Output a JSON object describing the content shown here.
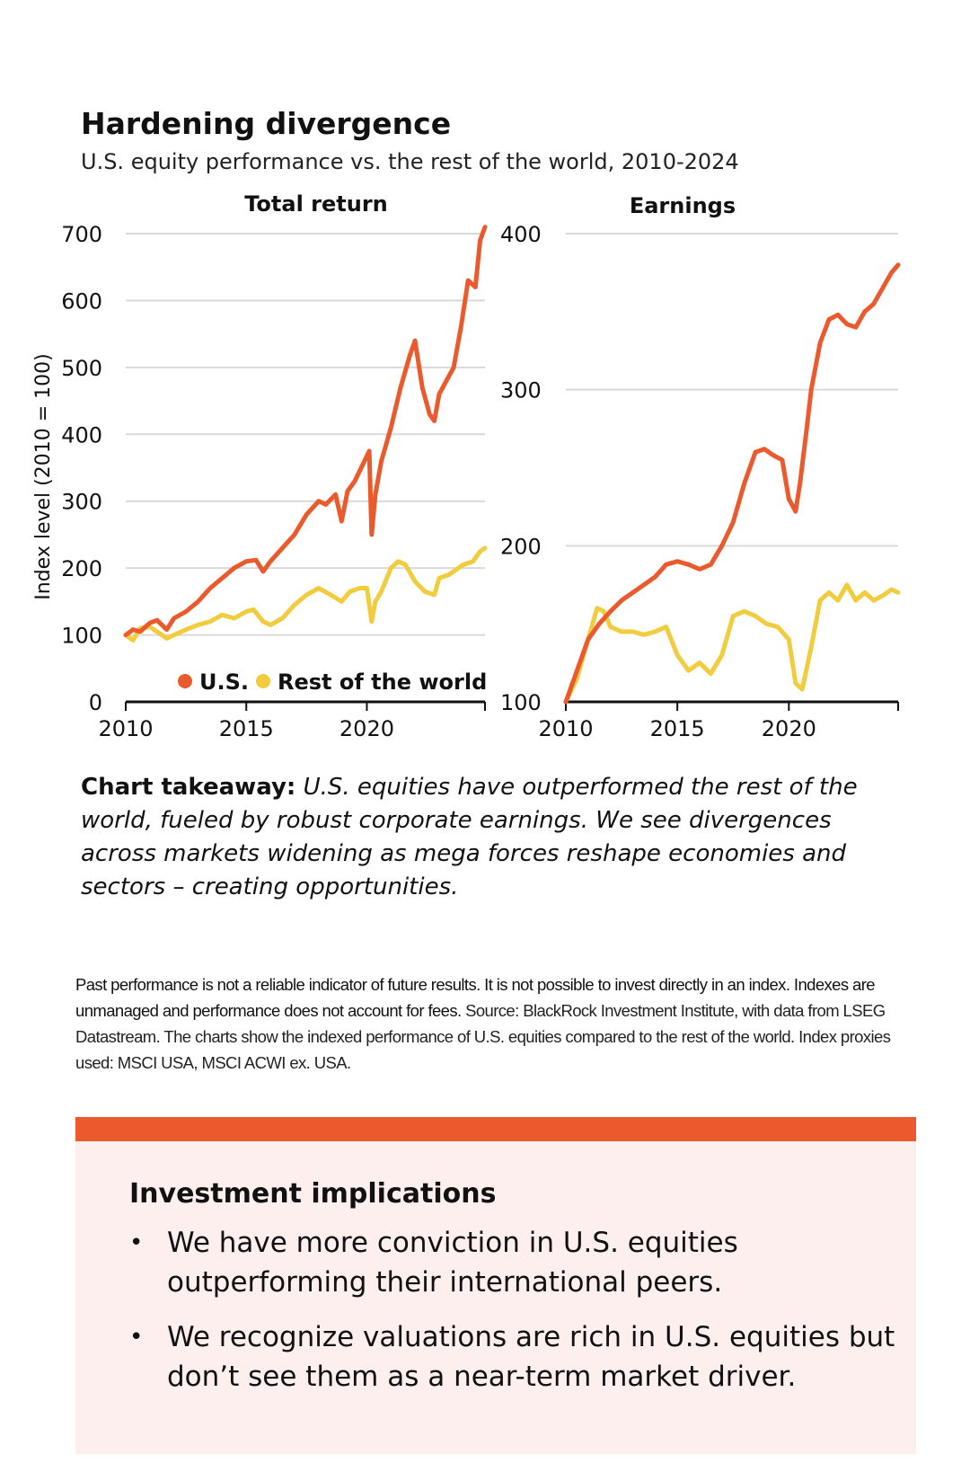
{
  "header": {
    "title": "Hardening divergence",
    "subtitle": "U.S. equity performance vs. the rest of the world, 2010-2024"
  },
  "colors": {
    "us": "#ea5a2d",
    "row": "#f2cc3f",
    "grid": "#d9d9d9",
    "panel_bg": "#fcefed"
  },
  "chart_data": [
    {
      "type": "line",
      "title": "Total return",
      "ylabel": "Index level (2010 = 100)",
      "ylim": [
        0,
        700
      ],
      "yticks": [
        0,
        100,
        200,
        300,
        400,
        500,
        600,
        700
      ],
      "xlim": [
        2010,
        2024.9
      ],
      "xticks": [
        2010,
        2015,
        2020
      ],
      "legend": {
        "placement": "bottom-inside",
        "entries": [
          "U.S.",
          "Rest of the world"
        ]
      },
      "series": [
        {
          "name": "U.S.",
          "x": [
            2010,
            2010.3,
            2010.6,
            2011,
            2011.3,
            2011.7,
            2012,
            2012.5,
            2013,
            2013.5,
            2014,
            2014.5,
            2015,
            2015.4,
            2015.7,
            2016,
            2016.5,
            2017,
            2017.5,
            2018,
            2018.3,
            2018.7,
            2018.95,
            2019.2,
            2019.5,
            2019.9,
            2020.1,
            2020.2,
            2020.35,
            2020.6,
            2021,
            2021.4,
            2021.8,
            2022,
            2022.3,
            2022.6,
            2022.8,
            2023,
            2023.3,
            2023.6,
            2023.9,
            2024.2,
            2024.5,
            2024.7,
            2024.9
          ],
          "y": [
            100,
            108,
            105,
            118,
            122,
            108,
            125,
            135,
            150,
            170,
            185,
            200,
            210,
            212,
            195,
            210,
            230,
            250,
            280,
            300,
            295,
            310,
            270,
            315,
            330,
            360,
            375,
            250,
            310,
            360,
            410,
            470,
            520,
            540,
            470,
            430,
            420,
            460,
            480,
            500,
            560,
            630,
            620,
            690,
            710
          ]
        },
        {
          "name": "Rest of the world",
          "x": [
            2010,
            2010.3,
            2010.6,
            2011,
            2011.3,
            2011.7,
            2012,
            2012.5,
            2013,
            2013.5,
            2014,
            2014.5,
            2015,
            2015.3,
            2015.7,
            2016,
            2016.5,
            2017,
            2017.5,
            2018,
            2018.5,
            2018.95,
            2019.3,
            2019.7,
            2020,
            2020.2,
            2020.35,
            2020.6,
            2021,
            2021.3,
            2021.6,
            2022,
            2022.4,
            2022.8,
            2023,
            2023.4,
            2023.8,
            2024,
            2024.4,
            2024.7,
            2024.9
          ],
          "y": [
            100,
            92,
            110,
            112,
            105,
            95,
            100,
            108,
            115,
            120,
            130,
            125,
            135,
            138,
            120,
            115,
            125,
            145,
            160,
            170,
            160,
            150,
            165,
            170,
            170,
            120,
            150,
            165,
            200,
            210,
            205,
            180,
            165,
            160,
            185,
            190,
            200,
            205,
            210,
            225,
            230
          ]
        }
      ]
    },
    {
      "type": "line",
      "title": "Earnings",
      "ylim": [
        100,
        400
      ],
      "yticks": [
        100,
        200,
        300,
        400
      ],
      "xlim": [
        2010,
        2024.9
      ],
      "xticks": [
        2010,
        2015,
        2020
      ],
      "series": [
        {
          "name": "U.S.",
          "x": [
            2010,
            2010.5,
            2011,
            2011.5,
            2012,
            2012.5,
            2013,
            2013.5,
            2014,
            2014.5,
            2015,
            2015.5,
            2016,
            2016.5,
            2017,
            2017.5,
            2018,
            2018.5,
            2018.9,
            2019.3,
            2019.7,
            2020,
            2020.3,
            2020.5,
            2020.8,
            2021,
            2021.4,
            2021.8,
            2022.2,
            2022.6,
            2023,
            2023.4,
            2023.8,
            2024.2,
            2024.6,
            2024.9
          ],
          "y": [
            100,
            120,
            140,
            150,
            158,
            165,
            170,
            175,
            180,
            188,
            190,
            188,
            185,
            188,
            200,
            215,
            240,
            260,
            262,
            258,
            255,
            230,
            222,
            240,
            275,
            300,
            330,
            345,
            348,
            342,
            340,
            350,
            355,
            365,
            375,
            380
          ]
        },
        {
          "name": "Rest of the world",
          "x": [
            2010,
            2010.5,
            2011,
            2011.4,
            2011.7,
            2012,
            2012.5,
            2013,
            2013.5,
            2014,
            2014.5,
            2015,
            2015.5,
            2016,
            2016.5,
            2017,
            2017.5,
            2018,
            2018.5,
            2019,
            2019.5,
            2020,
            2020.3,
            2020.6,
            2021,
            2021.4,
            2021.8,
            2022.2,
            2022.6,
            2023,
            2023.4,
            2023.8,
            2024.2,
            2024.6,
            2024.9
          ],
          "y": [
            100,
            115,
            140,
            160,
            158,
            148,
            145,
            145,
            143,
            145,
            148,
            130,
            120,
            125,
            118,
            130,
            155,
            158,
            155,
            150,
            148,
            140,
            112,
            108,
            135,
            165,
            170,
            165,
            175,
            165,
            170,
            165,
            168,
            172,
            170
          ]
        }
      ]
    }
  ],
  "takeaway": {
    "label": "Chart takeaway:",
    "text": "U.S. equities have outperformed the rest of the world, fueled by robust corporate earnings. We see divergences across markets widening as mega forces reshape economies and sectors – creating opportunities."
  },
  "disclaimer": {
    "strong": "Past performance is not a reliable indicator of future results. It is not possible to invest directly in an index. Indexes are unmanaged and performance does not account for fees.",
    "text": "Source: BlackRock Investment Institute, with data from LSEG Datastream. The charts show the indexed performance of U.S. equities compared to the rest of the world. Index proxies used: MSCI USA, MSCI ACWI ex. USA."
  },
  "implications": {
    "title": "Investment implications",
    "bullet": "•",
    "items": [
      "We have more conviction in U.S. equities outperforming their international peers.",
      "We recognize valuations are rich in U.S. equities but don’t see them as a near-term market driver."
    ]
  }
}
